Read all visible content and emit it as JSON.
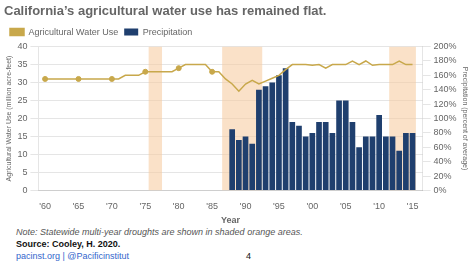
{
  "chart_data": {
    "type": "bar",
    "title": "California’s agricultural water use has remained flat.",
    "annotations": [
      "Note: Statewide multi-year droughts are shown in shaded orange areas.",
      "Source: Cooley, H. 2020.",
      "pacinst.org | @Pacificinstitut",
      "4"
    ],
    "x_label": "Year",
    "y_label": "Agricultural Water Use (million acre-feet)",
    "y2_label": "Precipitation (percent of average)",
    "xlim": [
      1959,
      2016.5
    ],
    "xticks": [
      {
        "value": 1960,
        "label": "'60"
      },
      {
        "value": 1965,
        "label": "'65"
      },
      {
        "value": 1970,
        "label": "'70"
      },
      {
        "value": 1975,
        "label": "'75"
      },
      {
        "value": 1980,
        "label": "'80"
      },
      {
        "value": 1985,
        "label": "'85"
      },
      {
        "value": 1990,
        "label": "'90"
      },
      {
        "value": 1995,
        "label": "'95"
      },
      {
        "value": 2000,
        "label": "'00"
      },
      {
        "value": 2005,
        "label": "'05"
      },
      {
        "value": 2010,
        "label": "'10"
      },
      {
        "value": 2015,
        "label": "'15"
      }
    ],
    "ylim": [
      0,
      40
    ],
    "yticks": [
      0,
      5,
      10,
      15,
      20,
      25,
      30,
      35,
      40
    ],
    "y2lim": [
      0,
      200
    ],
    "y2ticks": [
      {
        "value": 0,
        "label": "0%"
      },
      {
        "value": 20,
        "label": "20%"
      },
      {
        "value": 40,
        "label": "40%"
      },
      {
        "value": 60,
        "label": "60%"
      },
      {
        "value": 80,
        "label": "80%"
      },
      {
        "value": 100,
        "label": "100%"
      },
      {
        "value": 120,
        "label": "120%"
      },
      {
        "value": 140,
        "label": "140%"
      },
      {
        "value": 160,
        "label": "160%"
      },
      {
        "value": 180,
        "label": "180%"
      },
      {
        "value": 200,
        "label": "200%"
      }
    ],
    "grid": "y",
    "legend": "upper left",
    "drought_zones": {
      "color": "#F5C99A",
      "ranges": [
        [
          1975.5,
          1977.5
        ],
        [
          1986.5,
          1992.5
        ],
        [
          2011.5,
          2015.5
        ]
      ]
    },
    "series": [
      {
        "name": "Agricultural Water Use",
        "type": "line",
        "axis": "y2",
        "color": "#C8A84B",
        "line_style": "solid",
        "x": [
          1960,
          1961,
          1962,
          1963,
          1964,
          1965,
          1966,
          1967,
          1968,
          1969,
          1970,
          1971,
          1972,
          1973,
          1974,
          1975,
          1976,
          1977,
          1978,
          1979,
          1980,
          1981,
          1982,
          1983,
          1984,
          1985,
          1986,
          1987,
          1988,
          1989,
          1990,
          1991,
          1992,
          1993,
          1994,
          1995,
          1996,
          1997,
          1998,
          1999,
          2000,
          2001,
          2002,
          2003,
          2004,
          2005,
          2006,
          2007,
          2008,
          2009,
          2010,
          2011,
          2012,
          2013,
          2014,
          2015
        ],
        "values": [
          155,
          155,
          155,
          155,
          155,
          155,
          155,
          155,
          155,
          155,
          155,
          155,
          160,
          160,
          160,
          165,
          165,
          165,
          165,
          165,
          170,
          175,
          175,
          175,
          175,
          165,
          165,
          155,
          148,
          138,
          148,
          153,
          148,
          152,
          156,
          160,
          168,
          175,
          175,
          175,
          174,
          175,
          170,
          175,
          175,
          175,
          180,
          175,
          180,
          174,
          175,
          175,
          175,
          180,
          175,
          175
        ]
      },
      {
        "name": "Precipitation",
        "type": "bar",
        "color": "#1F3F6E",
        "x": [
          1988,
          1989,
          1990,
          1991,
          1992,
          1993,
          1994,
          1995,
          1996,
          1997,
          1998,
          1999,
          2000,
          2001,
          2002,
          2003,
          2004,
          2005,
          2006,
          2007,
          2008,
          2009,
          2010,
          2011,
          2012,
          2013,
          2014,
          2015
        ],
        "values": [
          17,
          14,
          15,
          13,
          28,
          29,
          30,
          32,
          34,
          19,
          18,
          15,
          16,
          19,
          19,
          16,
          25,
          25,
          19,
          12,
          15,
          15,
          21,
          15,
          15,
          11,
          16,
          16
        ]
      },
      {
        "type": "scatter",
        "axis": "y2",
        "color": "#C8A84B",
        "marker": "circle",
        "x": [
          1960,
          1965,
          1970,
          1975,
          1980,
          1985
        ],
        "values": [
          155,
          155,
          155,
          165,
          170,
          165
        ]
      }
    ]
  }
}
